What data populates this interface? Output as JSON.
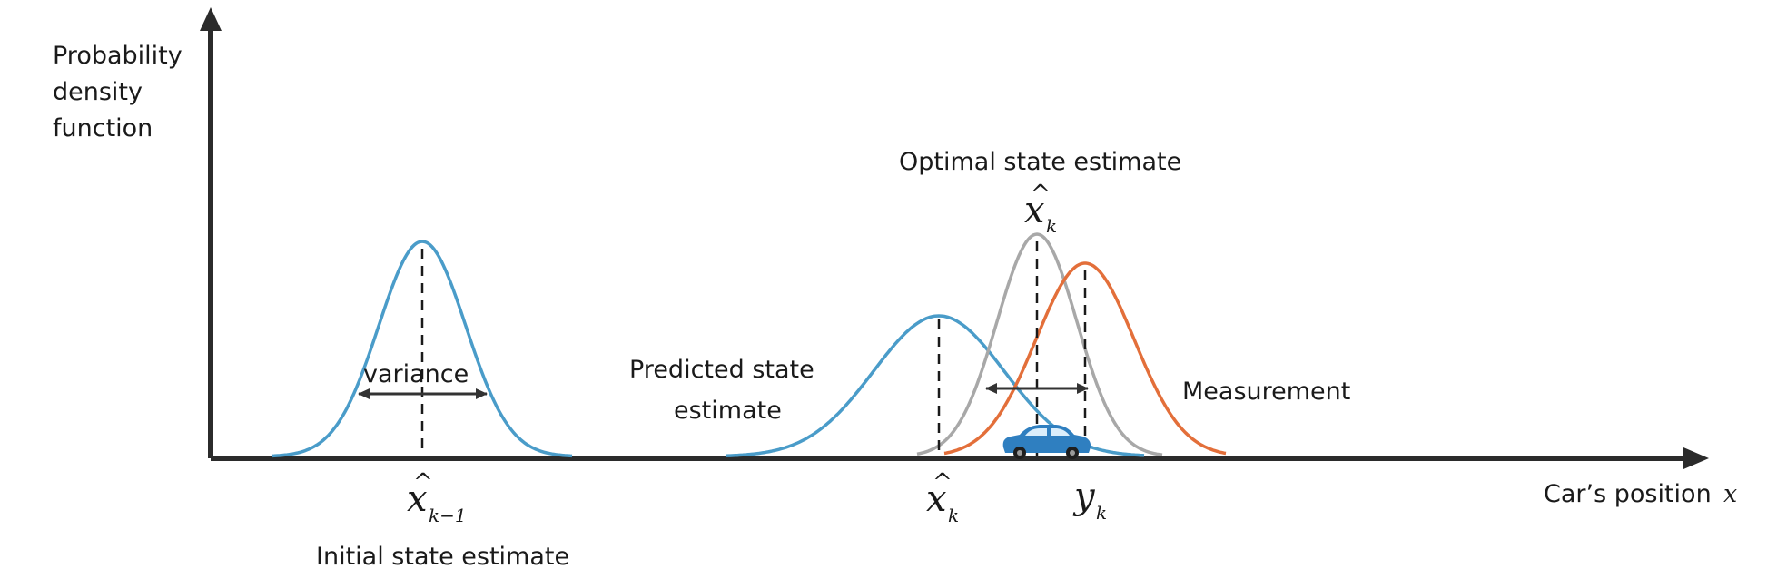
{
  "axes": {
    "y_label_lines": [
      "Probability",
      "density",
      "function"
    ],
    "x_label": "Car’s position",
    "x_label_var": "x"
  },
  "colors": {
    "initial": "#4a9cc9",
    "predicted": "#4a9cc9",
    "optimal": "#a8a8a8",
    "measurement": "#e36f3a",
    "car_body": "#2f7fc0",
    "car_window": "#dbeefb",
    "axis": "#2b2b2b"
  },
  "labels": {
    "variance": "variance",
    "initial_state": "Initial state estimate",
    "predicted_state_lines": [
      "Predicted state",
      "estimate"
    ],
    "optimal_state": "Optimal state estimate",
    "measurement": "Measurement"
  },
  "symbols": {
    "initial_symbol": {
      "base": "x",
      "hat": "^",
      "sub": "k−1"
    },
    "predicted_symbol": {
      "base": "x",
      "hat": "^",
      "sub": "k"
    },
    "optimal_symbol": {
      "base": "x",
      "hat": "^",
      "sub": "k"
    },
    "measurement_symbol": {
      "base": "y",
      "sub": "k"
    }
  },
  "icons": {
    "car": "car-icon",
    "variance_arrow": "double-arrow-icon",
    "measurement_arrow": "double-arrow-icon"
  }
}
